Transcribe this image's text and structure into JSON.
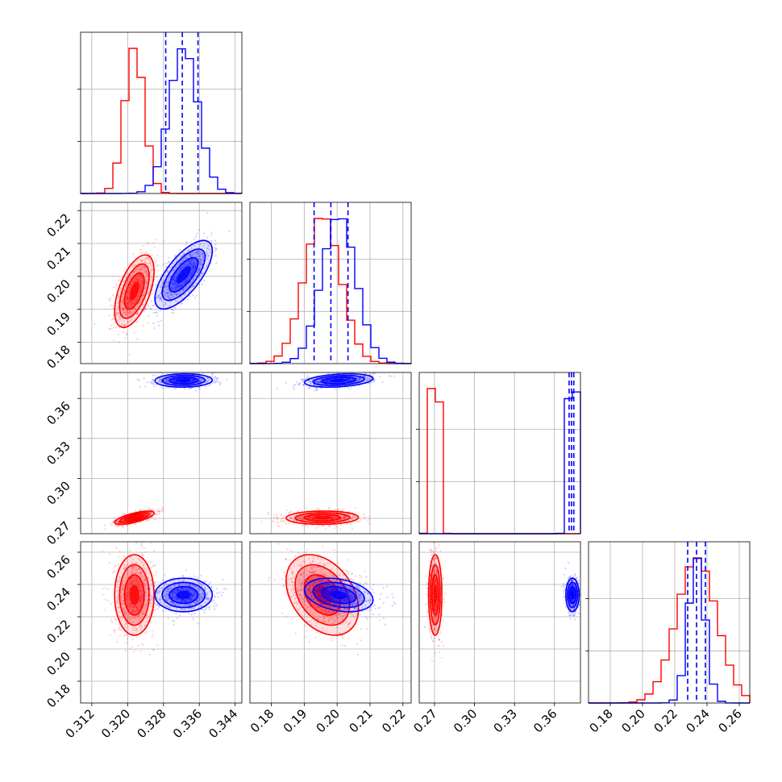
{
  "chart_data": {
    "type": "corner",
    "parameters": 4,
    "series": [
      {
        "color": "#ff0000",
        "means": [
          0.3215,
          0.1955,
          0.2705,
          0.2335
        ],
        "stds": [
          0.0022,
          0.0055,
          0.0025,
          0.0125
        ],
        "corr01": 0.55,
        "corr02": 0.7,
        "corr12": 0.05,
        "corr13": -0.35
      },
      {
        "color": "#0000ff",
        "means": [
          0.3325,
          0.2005,
          0.3735,
          0.2335
        ],
        "stds": [
          0.0032,
          0.0052,
          0.0025,
          0.0052
        ],
        "corr01": 0.7,
        "corr02": 0.05,
        "corr12": 0.3,
        "corr13": -0.3
      }
    ],
    "quantile_lines": {
      "color": "#0000ff",
      "style": "dashed",
      "values": [
        [
          0.3285,
          0.3322,
          0.3357
        ],
        [
          0.193,
          0.1981,
          0.2033
        ],
        [
          0.371,
          0.3728,
          0.3745
        ],
        [
          0.228,
          0.2335,
          0.239
        ]
      ]
    },
    "ranges": [
      [
        0.3095,
        0.3455
      ],
      [
        0.1735,
        0.2225
      ],
      [
        0.2585,
        0.3795
      ],
      [
        0.1665,
        0.2665
      ]
    ],
    "ticks": [
      [
        "0.312",
        "0.320",
        "0.328",
        "0.336",
        "0.344"
      ],
      [
        "0.18",
        "0.19",
        "0.20",
        "0.21",
        "0.22"
      ],
      [
        "0.27",
        "0.30",
        "0.33",
        "0.36"
      ],
      [
        "0.18",
        "0.20",
        "0.22",
        "0.24",
        "0.26"
      ]
    ],
    "grid": true
  }
}
